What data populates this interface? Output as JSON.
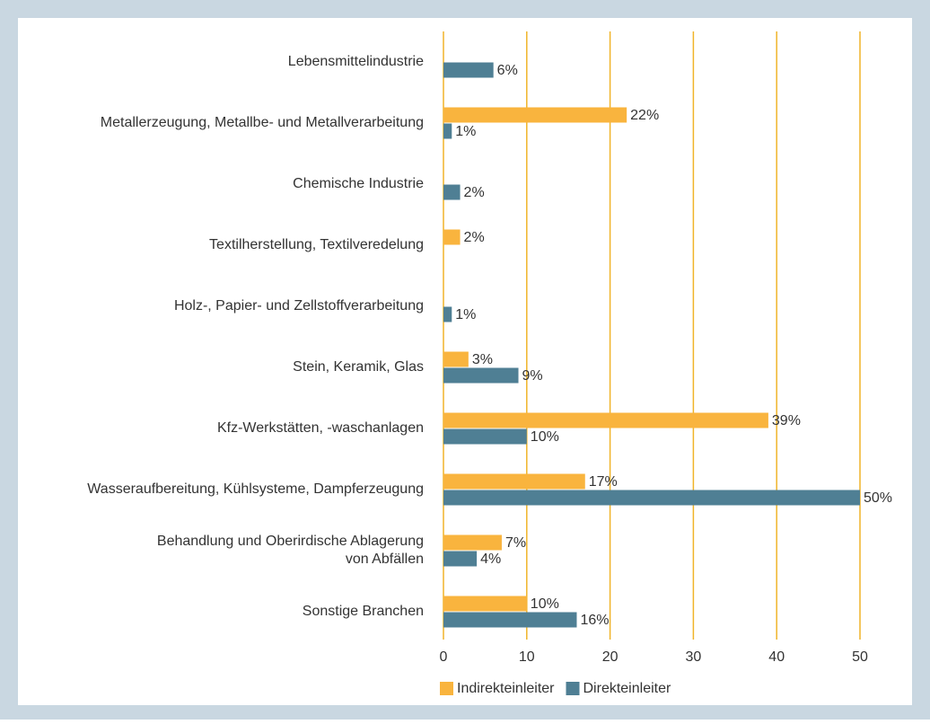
{
  "chart_data": {
    "type": "hbar",
    "categories": [
      "Lebensmittelindustrie",
      "Metallerzeugung, Metallbe- und Metallverarbeitung",
      "Chemische Industrie",
      "Textilherstellung, Textilveredelung",
      "Holz-, Papier- und Zellstoffverarbeitung",
      "Stein, Keramik, Glas",
      "Kfz-Werkstätten, -waschanlagen",
      "Wasseraufbereitung, Kühlsysteme, Dampferzeugung",
      "Behandlung und Oberirdische Ablagerung\nvon Abfällen",
      "Sonstige Branchen"
    ],
    "series": [
      {
        "name": "Indirekteinleiter",
        "color": "#f9b43e",
        "values": [
          null,
          22,
          null,
          2,
          null,
          3,
          39,
          17,
          7,
          10
        ],
        "value_labels": [
          null,
          "22%",
          null,
          "2%",
          null,
          "3%",
          "39%",
          "17%",
          "7%",
          "10%"
        ]
      },
      {
        "name": "Direkteinleiter",
        "color": "#4f7f94",
        "values": [
          6,
          1,
          2,
          null,
          1,
          9,
          10,
          50,
          4,
          16
        ],
        "value_labels": [
          "6%",
          "1%",
          "2%",
          null,
          "1%",
          "9%",
          "10%",
          "50%",
          "4%",
          "16%"
        ]
      }
    ],
    "xlim": [
      0,
      50
    ],
    "xticks": [
      0,
      10,
      20,
      30,
      40,
      50
    ],
    "grid": true,
    "grid_color": "#f0b429",
    "legend": "bottom"
  }
}
